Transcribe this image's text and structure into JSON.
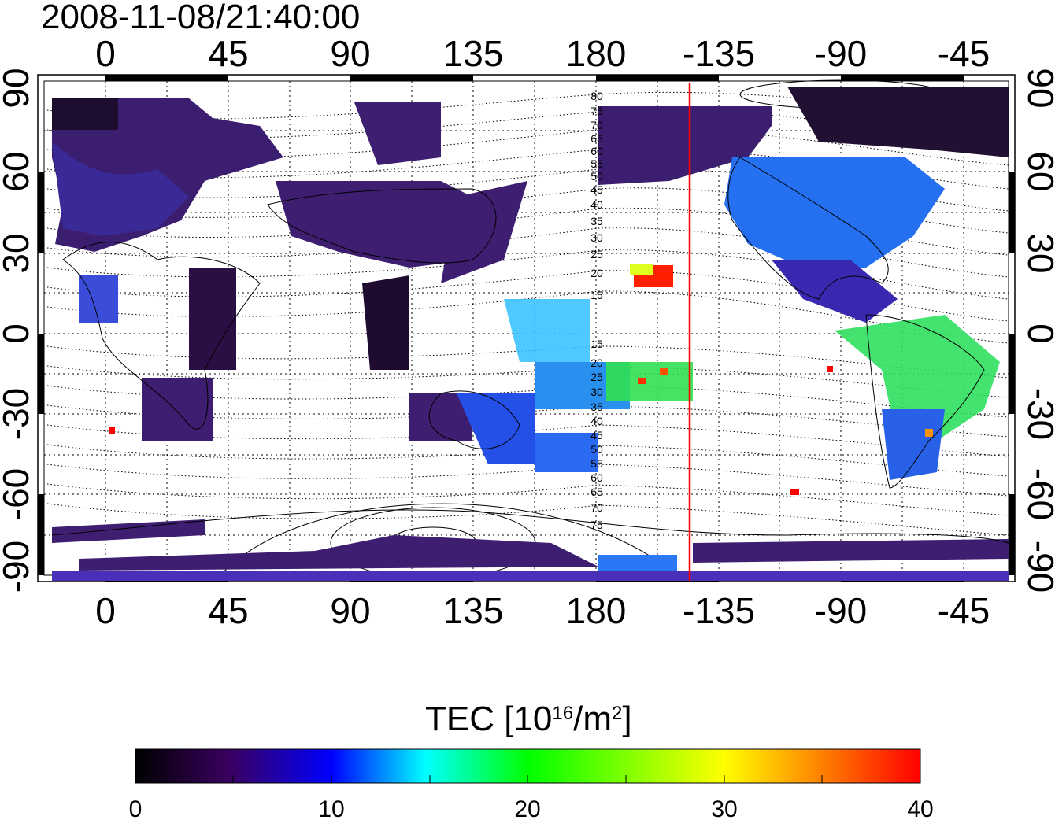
{
  "timestamp": "2008-11-08/21:40:00",
  "top_lon_labels": [
    "0",
    "45",
    "90",
    "135",
    "180",
    "-135",
    "-90",
    "-45"
  ],
  "bottom_lon_labels": [
    "0",
    "45",
    "90",
    "135",
    "180",
    "-135",
    "-90",
    "-45"
  ],
  "left_lat_labels": [
    "90",
    "60",
    "30",
    "0",
    "-30",
    "-60",
    "-90"
  ],
  "right_lat_labels": [
    "90",
    "60",
    "30",
    "0",
    "-30",
    "-60",
    "-90"
  ],
  "contour_labels_north": [
    "80",
    "75",
    "70",
    "65",
    "60",
    "55",
    "50",
    "45",
    "40",
    "35",
    "30",
    "25",
    "20",
    "15"
  ],
  "contour_labels_south": [
    "15",
    "20",
    "25",
    "30",
    "35",
    "40",
    "45",
    "50",
    "55",
    "60",
    "65",
    "70",
    "75"
  ],
  "colorbar": {
    "title_main": "TEC  [10",
    "title_exp": "16",
    "title_unit": "/m",
    "title_exp2": "2",
    "title_close": "]",
    "tick_labels": [
      "0",
      "10",
      "20",
      "30",
      "40"
    ],
    "min": 0,
    "max": 40,
    "stops": [
      "#000000",
      "#3a0060",
      "#0000ff",
      "#00ffff",
      "#00ff00",
      "#ffff00",
      "#ff0000"
    ]
  },
  "terminator_longitude": -150,
  "colors": {
    "terminator": "#ff0000",
    "low_tec": "#3d1f6e",
    "high_tec": "#ff2000"
  }
}
